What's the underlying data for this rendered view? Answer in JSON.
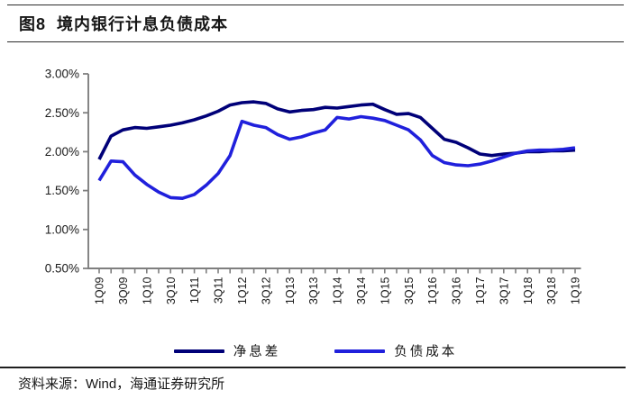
{
  "figure": {
    "title": "图8  境内银行计息负债成本",
    "source": "资料来源：Wind，海通证券研究所"
  },
  "chart_data": {
    "type": "line",
    "title": "境内银行计息负债成本",
    "xlabel": "",
    "ylabel": "",
    "ylim": [
      0.5,
      3.0
    ],
    "grid": false,
    "legend_position": "bottom",
    "y_ticks": [
      "3.00%",
      "2.50%",
      "2.00%",
      "1.50%",
      "1.00%",
      "0.50%"
    ],
    "x_tick_labels": [
      "1Q09",
      "3Q09",
      "1Q10",
      "3Q10",
      "1Q11",
      "3Q11",
      "1Q12",
      "3Q12",
      "1Q13",
      "3Q13",
      "1Q14",
      "3Q14",
      "1Q15",
      "3Q15",
      "1Q16",
      "3Q16",
      "1Q17",
      "3Q17",
      "1Q18",
      "3Q18",
      "1Q19"
    ],
    "categories": [
      "1Q09",
      "2Q09",
      "3Q09",
      "4Q09",
      "1Q10",
      "2Q10",
      "3Q10",
      "4Q10",
      "1Q11",
      "2Q11",
      "3Q11",
      "4Q11",
      "1Q12",
      "2Q12",
      "3Q12",
      "4Q12",
      "1Q13",
      "2Q13",
      "3Q13",
      "4Q13",
      "1Q14",
      "2Q14",
      "3Q14",
      "4Q14",
      "1Q15",
      "2Q15",
      "3Q15",
      "4Q15",
      "1Q16",
      "2Q16",
      "3Q16",
      "4Q16",
      "1Q17",
      "2Q17",
      "3Q17",
      "4Q17",
      "1Q18",
      "2Q18",
      "3Q18",
      "4Q18",
      "1Q19"
    ],
    "unit": "percent",
    "series": [
      {
        "name": "净息差",
        "color": "#000078",
        "values": [
          1.9,
          2.2,
          2.28,
          2.31,
          2.3,
          2.32,
          2.34,
          2.37,
          2.41,
          2.46,
          2.52,
          2.6,
          2.63,
          2.64,
          2.62,
          2.55,
          2.51,
          2.53,
          2.54,
          2.57,
          2.56,
          2.58,
          2.6,
          2.61,
          2.54,
          2.48,
          2.49,
          2.44,
          2.3,
          2.16,
          2.12,
          2.05,
          1.97,
          1.95,
          1.97,
          1.98,
          2.0,
          2.0,
          2.01,
          2.01,
          2.02
        ]
      },
      {
        "name": "负债成本",
        "color": "#2020DC",
        "values": [
          1.63,
          1.88,
          1.87,
          1.7,
          1.58,
          1.48,
          1.41,
          1.4,
          1.45,
          1.57,
          1.72,
          1.95,
          2.39,
          2.34,
          2.31,
          2.22,
          2.16,
          2.19,
          2.24,
          2.28,
          2.44,
          2.42,
          2.45,
          2.43,
          2.4,
          2.34,
          2.28,
          2.15,
          1.95,
          1.86,
          1.83,
          1.82,
          1.84,
          1.88,
          1.93,
          1.98,
          2.01,
          2.02,
          2.02,
          2.03,
          2.05
        ]
      }
    ],
    "axis_color": "#7f7f7f"
  }
}
